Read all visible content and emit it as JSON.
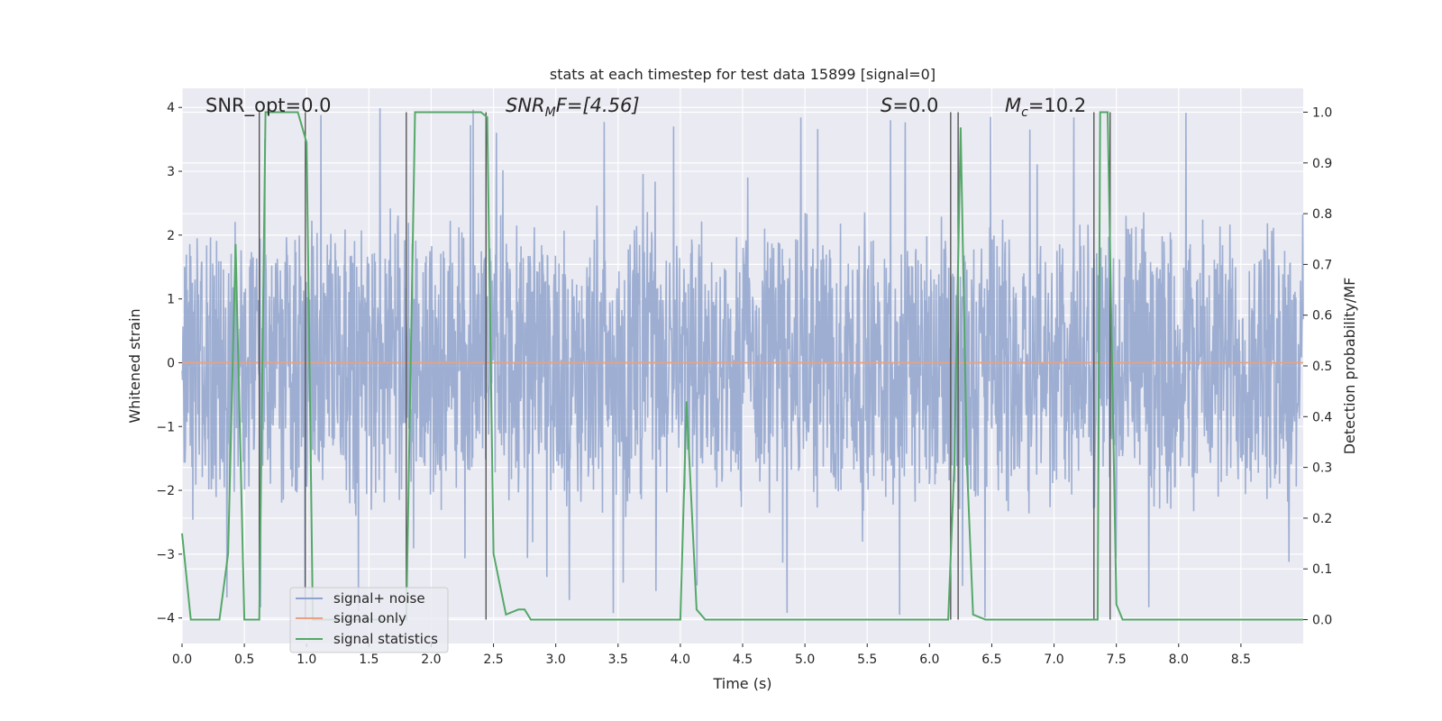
{
  "chart_data": {
    "type": "line",
    "title": "stats at each timestep for test data 15899 [signal=0]",
    "xlabel": "Time (s)",
    "ylabel": "Whitened strain",
    "y2label": "Detection probability/MF",
    "xlim": [
      0,
      9
    ],
    "ylim": [
      -4.4,
      4.3
    ],
    "y2lim": [
      -0.047,
      1.047
    ],
    "xticks": [
      "0.0",
      "0.5",
      "1.0",
      "1.5",
      "2.0",
      "2.5",
      "3.0",
      "3.5",
      "4.0",
      "4.5",
      "5.0",
      "5.5",
      "6.0",
      "6.5",
      "7.0",
      "7.5",
      "8.0",
      "8.5"
    ],
    "yticks": [
      "−4",
      "−3",
      "−2",
      "−1",
      "0",
      "1",
      "2",
      "3",
      "4"
    ],
    "y2ticks": [
      "0.0",
      "0.1",
      "0.2",
      "0.3",
      "0.4",
      "0.5",
      "0.6",
      "0.7",
      "0.8",
      "0.9",
      "1.0"
    ],
    "grid": true,
    "legend_position": "lower-left",
    "annotations": {
      "snr_opt": "SNR_opt=0.0",
      "snr_mf_prefix": "SNR",
      "snr_mf_sub": "M",
      "snr_mf_suffix": "F=[4.56]",
      "s_var": "S",
      "s_value": "=0.0",
      "mc_var": "M",
      "mc_sub": "c",
      "mc_value": "=10.2"
    },
    "series": [
      {
        "name": "signal+ noise",
        "color": "#8fa3cc",
        "description_stats": {
          "duration_s": 9,
          "typical_min": -2.4,
          "typical_max": 2.6,
          "extreme_min": -4.0,
          "extreme_max": 4.0
        }
      },
      {
        "name": "signal only",
        "color": "#e8a182",
        "x": [
          0,
          9
        ],
        "y": [
          0,
          0
        ]
      },
      {
        "name": "signal statistics",
        "color": "#55a868",
        "axis": "right",
        "x": [
          0.0,
          0.07,
          0.13,
          0.3,
          0.37,
          0.43,
          0.5,
          0.57,
          0.62,
          0.67,
          0.7,
          0.93,
          1.0,
          1.05,
          1.8,
          1.87,
          2.4,
          2.45,
          2.5,
          2.6,
          2.7,
          2.75,
          2.8,
          2.9,
          3.95,
          4.0,
          4.05,
          4.13,
          4.2,
          6.15,
          6.2,
          6.25,
          6.3,
          6.35,
          6.45,
          7.25,
          7.3,
          7.35,
          7.37,
          7.43,
          7.5,
          7.55,
          9.0
        ],
        "y": [
          0.17,
          0.0,
          0.0,
          0.0,
          0.13,
          0.74,
          0.0,
          0.0,
          0.0,
          1.0,
          1.0,
          1.0,
          0.94,
          0.0,
          0.0,
          1.0,
          1.0,
          0.99,
          0.13,
          0.01,
          0.02,
          0.02,
          0.0,
          0.0,
          0.0,
          0.0,
          0.43,
          0.02,
          0.0,
          0.0,
          0.31,
          0.97,
          0.31,
          0.01,
          0.0,
          0.0,
          0.0,
          0.0,
          1.0,
          1.0,
          0.03,
          0.0,
          0.0
        ]
      }
    ],
    "vlines": [
      0.62,
      0.99,
      1.8,
      2.44,
      6.17,
      6.23,
      7.32,
      7.45
    ],
    "vline_color": "#555555"
  }
}
